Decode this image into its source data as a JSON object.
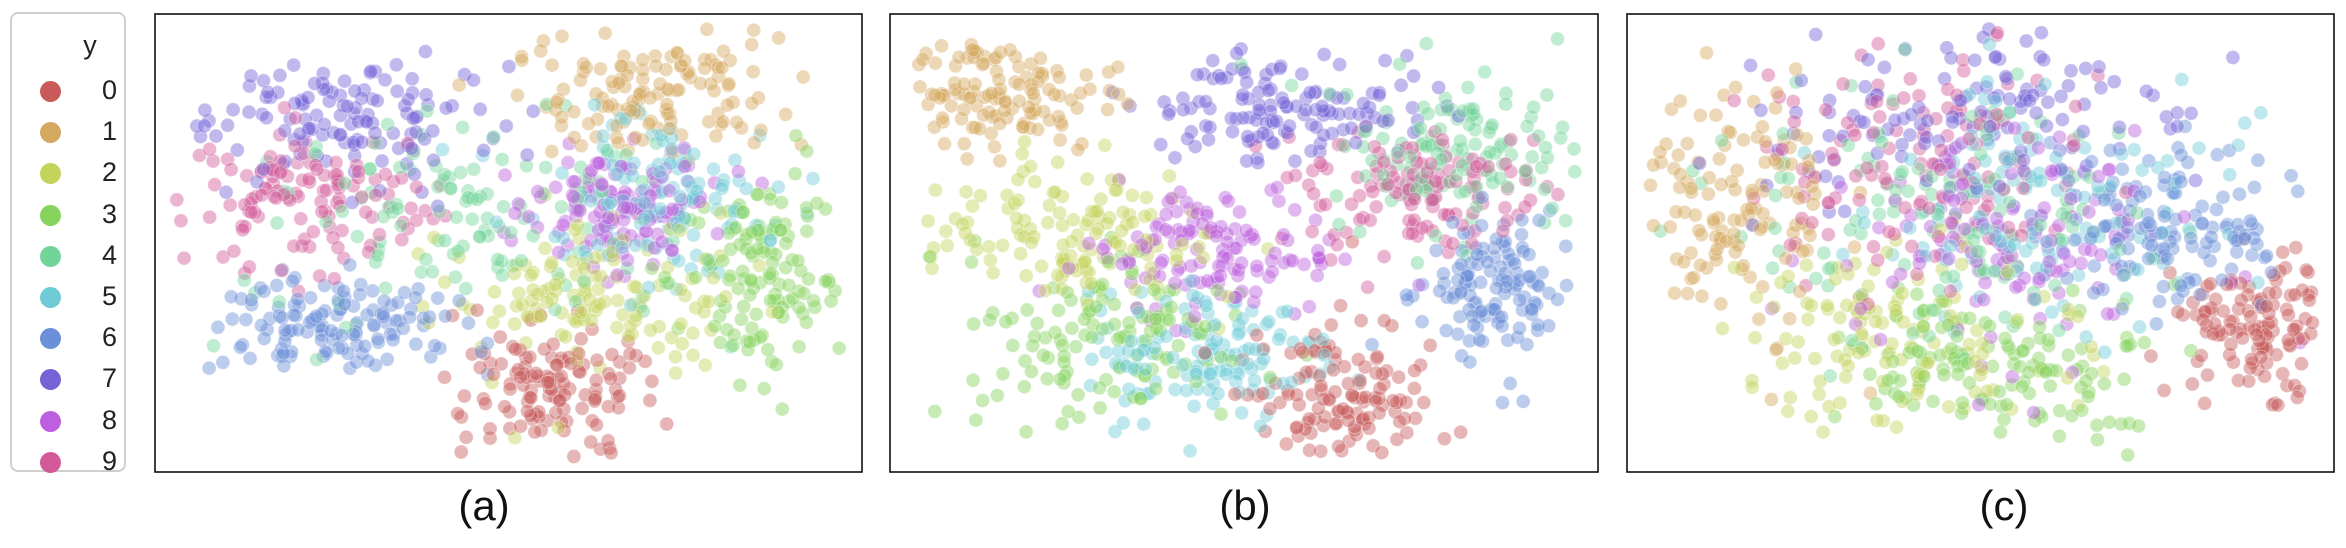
{
  "legend": {
    "title": "y",
    "items": [
      {
        "label": "0",
        "color": "#c85a5a"
      },
      {
        "label": "1",
        "color": "#d4a860"
      },
      {
        "label": "2",
        "color": "#c4d35c"
      },
      {
        "label": "3",
        "color": "#86d35e"
      },
      {
        "label": "4",
        "color": "#73d49a"
      },
      {
        "label": "5",
        "color": "#6fcbd6"
      },
      {
        "label": "6",
        "color": "#6b8fd8"
      },
      {
        "label": "7",
        "color": "#7464d6"
      },
      {
        "label": "8",
        "color": "#bd5fde"
      },
      {
        "label": "9",
        "color": "#d35a98"
      }
    ]
  },
  "chart_data": [
    {
      "type": "scatter",
      "caption": "(a)",
      "series_name": "y",
      "clusters": [
        {
          "label": "0",
          "cx": 0.55,
          "cy": 0.18,
          "sx": 0.09,
          "sy": 0.08
        },
        {
          "label": "1",
          "cx": 0.7,
          "cy": 0.82,
          "sx": 0.1,
          "sy": 0.07
        },
        {
          "label": "2",
          "cx": 0.62,
          "cy": 0.38,
          "sx": 0.12,
          "sy": 0.1
        },
        {
          "label": "3",
          "cx": 0.86,
          "cy": 0.42,
          "sx": 0.06,
          "sy": 0.12
        },
        {
          "label": "4",
          "cx": 0.45,
          "cy": 0.55,
          "sx": 0.18,
          "sy": 0.12
        },
        {
          "label": "5",
          "cx": 0.72,
          "cy": 0.6,
          "sx": 0.1,
          "sy": 0.1
        },
        {
          "label": "6",
          "cx": 0.25,
          "cy": 0.32,
          "sx": 0.09,
          "sy": 0.06
        },
        {
          "label": "7",
          "cx": 0.28,
          "cy": 0.76,
          "sx": 0.12,
          "sy": 0.08
        },
        {
          "label": "8",
          "cx": 0.66,
          "cy": 0.58,
          "sx": 0.07,
          "sy": 0.07
        },
        {
          "label": "9",
          "cx": 0.22,
          "cy": 0.6,
          "sx": 0.1,
          "sy": 0.08
        }
      ]
    },
    {
      "type": "scatter",
      "caption": "(b)",
      "series_name": "y",
      "clusters": [
        {
          "label": "0",
          "cx": 0.63,
          "cy": 0.18,
          "sx": 0.07,
          "sy": 0.1
        },
        {
          "label": "1",
          "cx": 0.15,
          "cy": 0.82,
          "sx": 0.08,
          "sy": 0.07
        },
        {
          "label": "2",
          "cx": 0.24,
          "cy": 0.52,
          "sx": 0.11,
          "sy": 0.09
        },
        {
          "label": "3",
          "cx": 0.28,
          "cy": 0.28,
          "sx": 0.12,
          "sy": 0.1
        },
        {
          "label": "4",
          "cx": 0.8,
          "cy": 0.7,
          "sx": 0.1,
          "sy": 0.1
        },
        {
          "label": "5",
          "cx": 0.44,
          "cy": 0.26,
          "sx": 0.09,
          "sy": 0.08
        },
        {
          "label": "6",
          "cx": 0.86,
          "cy": 0.4,
          "sx": 0.06,
          "sy": 0.09
        },
        {
          "label": "7",
          "cx": 0.55,
          "cy": 0.8,
          "sx": 0.1,
          "sy": 0.06
        },
        {
          "label": "8",
          "cx": 0.45,
          "cy": 0.48,
          "sx": 0.1,
          "sy": 0.08
        },
        {
          "label": "9",
          "cx": 0.76,
          "cy": 0.62,
          "sx": 0.09,
          "sy": 0.08
        }
      ]
    },
    {
      "type": "scatter",
      "caption": "(c)",
      "series_name": "y",
      "clusters": [
        {
          "label": "0",
          "cx": 0.89,
          "cy": 0.32,
          "sx": 0.06,
          "sy": 0.08
        },
        {
          "label": "1",
          "cx": 0.16,
          "cy": 0.58,
          "sx": 0.08,
          "sy": 0.15
        },
        {
          "label": "2",
          "cx": 0.38,
          "cy": 0.3,
          "sx": 0.12,
          "sy": 0.12
        },
        {
          "label": "3",
          "cx": 0.52,
          "cy": 0.22,
          "sx": 0.12,
          "sy": 0.1
        },
        {
          "label": "4",
          "cx": 0.45,
          "cy": 0.55,
          "sx": 0.16,
          "sy": 0.16
        },
        {
          "label": "5",
          "cx": 0.58,
          "cy": 0.6,
          "sx": 0.15,
          "sy": 0.15
        },
        {
          "label": "6",
          "cx": 0.78,
          "cy": 0.52,
          "sx": 0.1,
          "sy": 0.1
        },
        {
          "label": "7",
          "cx": 0.5,
          "cy": 0.78,
          "sx": 0.16,
          "sy": 0.1
        },
        {
          "label": "8",
          "cx": 0.55,
          "cy": 0.5,
          "sx": 0.14,
          "sy": 0.14
        },
        {
          "label": "9",
          "cx": 0.42,
          "cy": 0.66,
          "sx": 0.14,
          "sy": 0.12
        }
      ]
    }
  ]
}
